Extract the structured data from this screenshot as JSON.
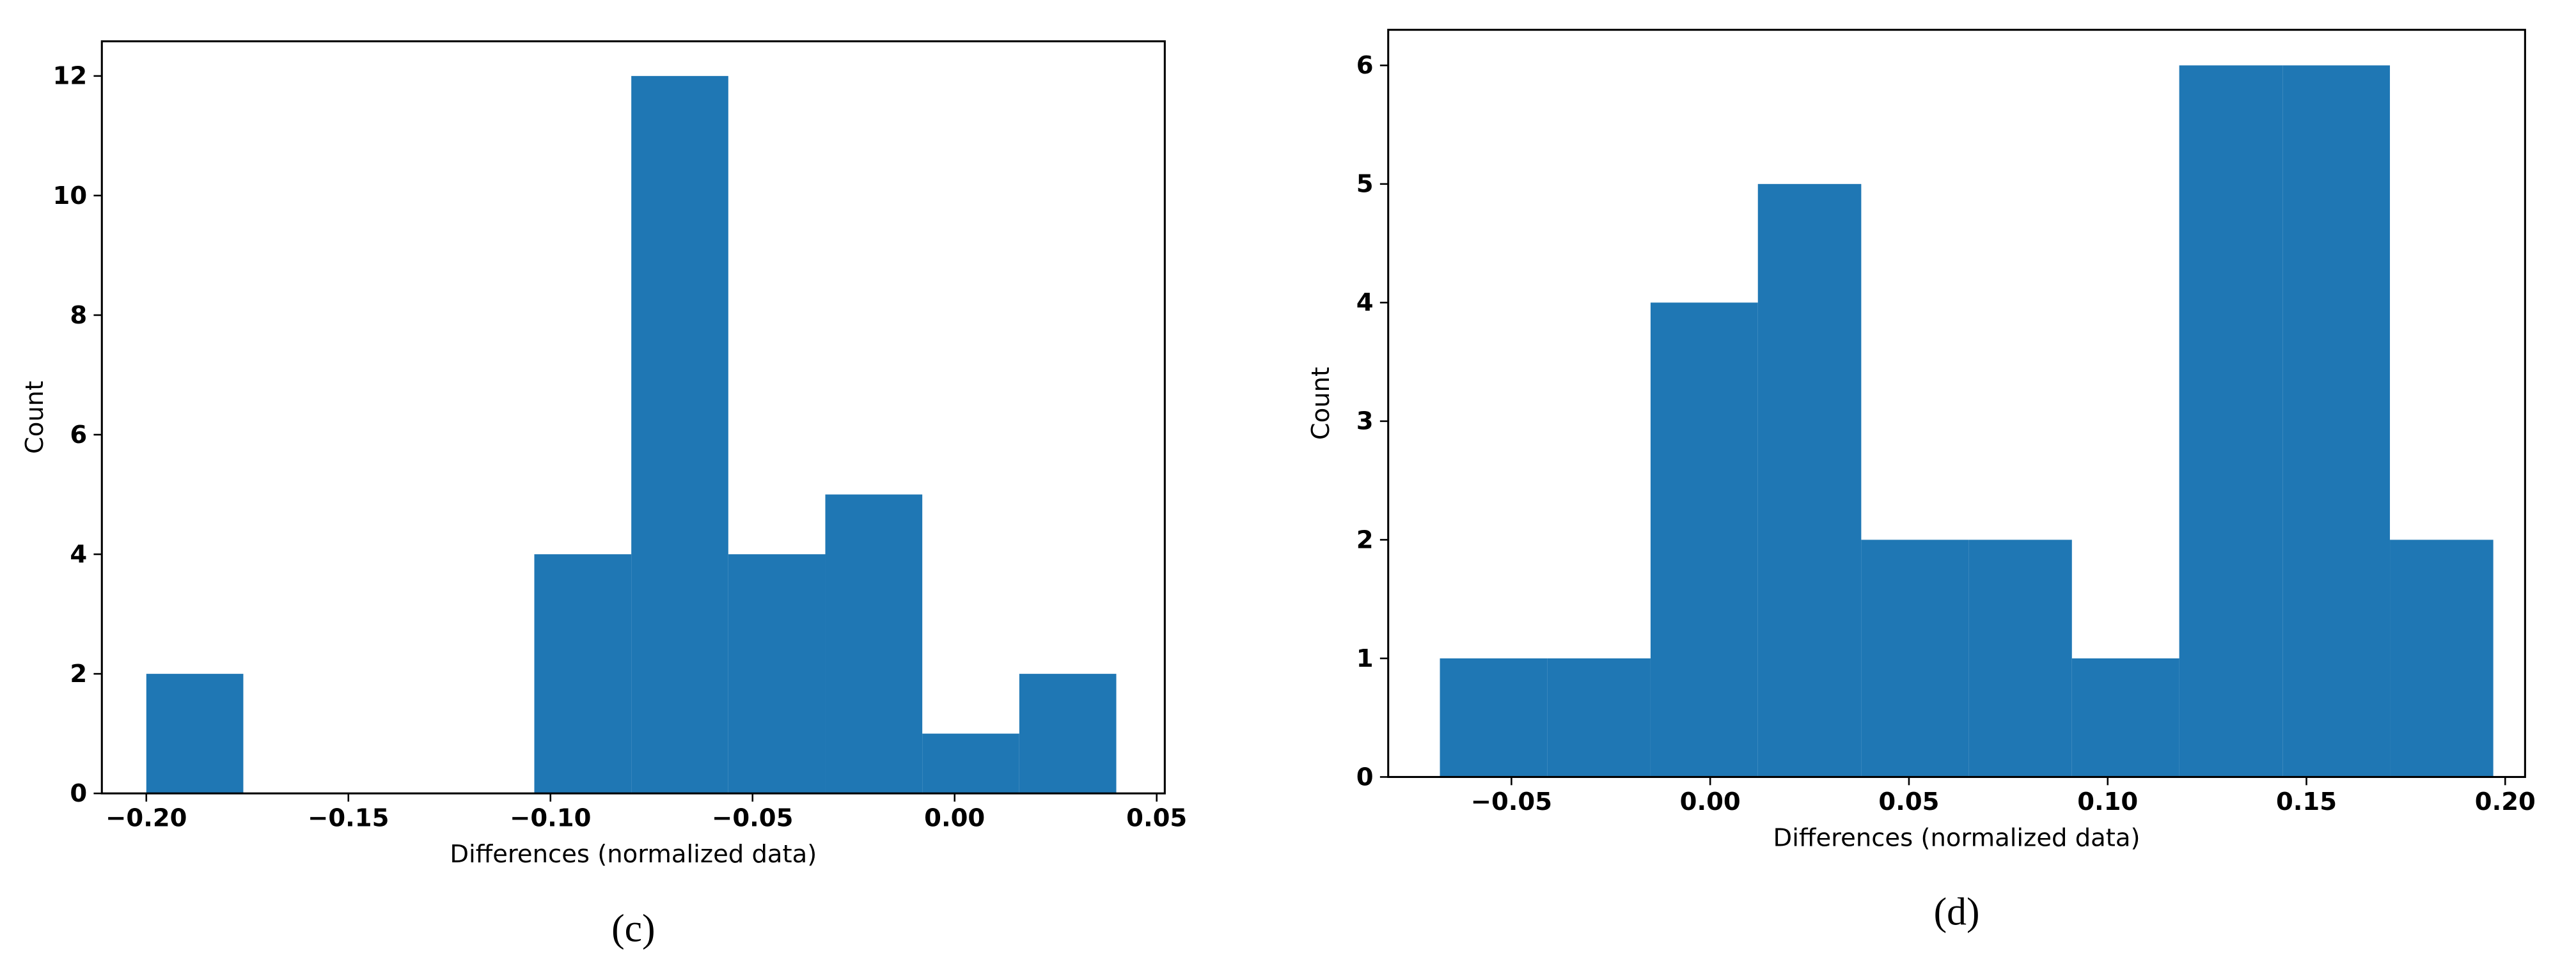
{
  "chart_data": [
    {
      "type": "histogram",
      "caption": "(c)",
      "xlabel": "Differences (normalized data)",
      "ylabel": "Count",
      "color": "#1f77b4",
      "bins": [
        -0.2,
        -0.176,
        -0.152,
        -0.128,
        -0.104,
        -0.08,
        -0.056,
        -0.032,
        -0.008,
        0.016,
        0.04
      ],
      "values": [
        2,
        0,
        0,
        0,
        4,
        12,
        4,
        5,
        1,
        2
      ],
      "xlim": [
        -0.211,
        0.052
      ],
      "ylim": [
        0,
        12.58
      ],
      "xticks": [
        {
          "value": -0.2,
          "label": "−0.20"
        },
        {
          "value": -0.15,
          "label": "−0.15"
        },
        {
          "value": -0.1,
          "label": "−0.10"
        },
        {
          "value": -0.05,
          "label": "−0.05"
        },
        {
          "value": 0,
          "label": "0.00"
        },
        {
          "value": 0.05,
          "label": "0.05"
        }
      ],
      "yticks": [
        0,
        2,
        4,
        6,
        8,
        10,
        12
      ]
    },
    {
      "type": "histogram",
      "caption": "(d)",
      "xlabel": "Differences (normalized data)",
      "ylabel": "Count",
      "color": "#1f77b4",
      "bins": [
        -0.068,
        -0.041,
        -0.015,
        0.012,
        0.038,
        0.065,
        0.091,
        0.118,
        0.144,
        0.171,
        0.197
      ],
      "values": [
        1,
        1,
        4,
        5,
        2,
        2,
        1,
        6,
        6,
        2
      ],
      "xlim": [
        -0.081,
        0.205
      ],
      "ylim": [
        0,
        6.3
      ],
      "xticks": [
        {
          "value": -0.05,
          "label": "−0.05"
        },
        {
          "value": 0,
          "label": "0.00"
        },
        {
          "value": 0.05,
          "label": "0.05"
        },
        {
          "value": 0.1,
          "label": "0.10"
        },
        {
          "value": 0.15,
          "label": "0.15"
        },
        {
          "value": 0.2,
          "label": "0.20"
        }
      ],
      "yticks": [
        0,
        1,
        2,
        3,
        4,
        5,
        6
      ]
    }
  ]
}
